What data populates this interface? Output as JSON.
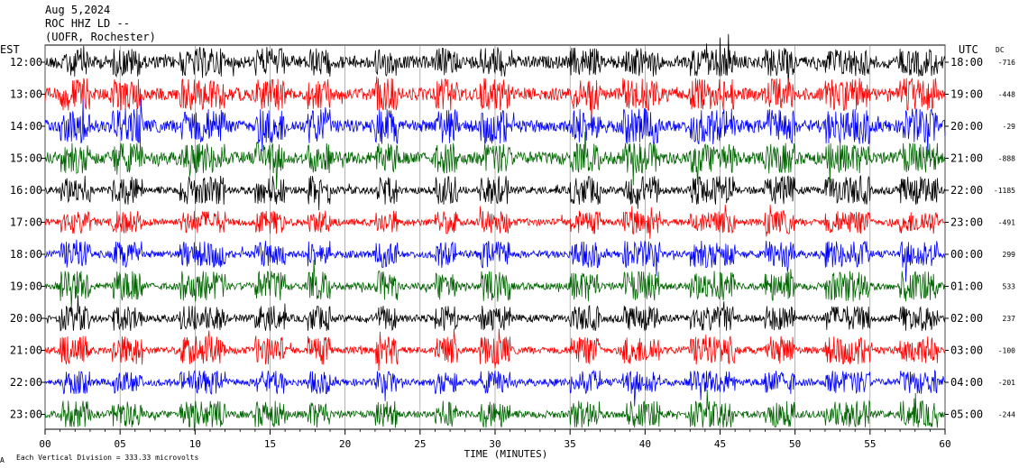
{
  "header": {
    "date": "Aug 5,2024",
    "station": "ROC HHZ LD --",
    "location": "(UOFR, Rochester)",
    "left_zone": "EST",
    "right_zone": "UTC",
    "dc_label": "DC"
  },
  "footer": {
    "scale_note": "Each Vertical Division =  333.33 microvolts",
    "corner_mark": "A"
  },
  "chart_data": {
    "type": "line",
    "title": "",
    "xlabel": "TIME (MINUTES)",
    "ylabel": "",
    "xlim": [
      0,
      60
    ],
    "x_ticks": [
      "00",
      "05",
      "10",
      "15",
      "20",
      "25",
      "30",
      "35",
      "40",
      "45",
      "50",
      "55",
      "60"
    ],
    "grid": true,
    "colors_cycle": [
      "#000000",
      "#ff0000",
      "#0000ff",
      "#006400"
    ],
    "rows": [
      {
        "est": "12:00",
        "utc": "18:00",
        "dc": "-716",
        "color": "#000000"
      },
      {
        "est": "13:00",
        "utc": "19:00",
        "dc": "-448",
        "color": "#ff0000"
      },
      {
        "est": "14:00",
        "utc": "20:00",
        "dc": "-29",
        "color": "#0000ff"
      },
      {
        "est": "15:00",
        "utc": "21:00",
        "dc": "-888",
        "color": "#006400"
      },
      {
        "est": "16:00",
        "utc": "22:00",
        "dc": "-1185",
        "color": "#000000"
      },
      {
        "est": "17:00",
        "utc": "23:00",
        "dc": "-491",
        "color": "#ff0000"
      },
      {
        "est": "18:00",
        "utc": "00:00",
        "dc": "299",
        "color": "#0000ff"
      },
      {
        "est": "19:00",
        "utc": "01:00",
        "dc": "533",
        "color": "#006400"
      },
      {
        "est": "20:00",
        "utc": "02:00",
        "dc": "237",
        "color": "#000000"
      },
      {
        "est": "21:00",
        "utc": "03:00",
        "dc": "-100",
        "color": "#ff0000"
      },
      {
        "est": "22:00",
        "utc": "04:00",
        "dc": "-201",
        "color": "#0000ff"
      },
      {
        "est": "23:00",
        "utc": "05:00",
        "dc": "-244",
        "color": "#006400"
      }
    ]
  }
}
